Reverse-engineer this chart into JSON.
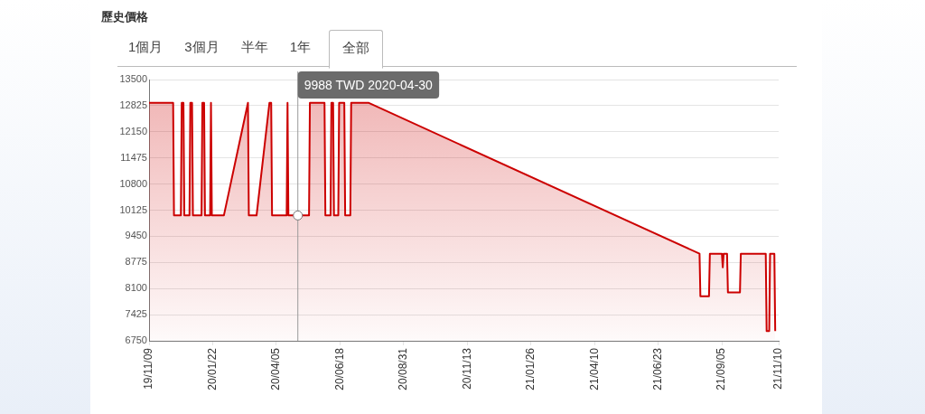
{
  "chart_data": {
    "type": "area",
    "title": "歷史價格",
    "annotations": [
      "1個月",
      "3個月",
      "半年",
      "1年",
      "全部"
    ],
    "ref_lines": [
      {
        "axis": "x",
        "value": "2020-04-30",
        "label": "9988 TWD 2020-04-30",
        "color": "#999999"
      }
    ],
    "x": [
      "2019-11-09",
      "2019-12-07",
      "2019-12-08",
      "2019-12-16",
      "2019-12-17",
      "2019-12-19",
      "2019-12-20",
      "2019-12-26",
      "2019-12-27",
      "2019-12-29",
      "2019-12-30",
      "2020-01-09",
      "2020-01-10",
      "2020-01-12",
      "2020-01-13",
      "2020-01-19",
      "2020-01-20",
      "2020-01-21",
      "2020-02-04",
      "2020-03-03",
      "2020-03-04",
      "2020-03-13",
      "2020-03-28",
      "2020-03-30",
      "2020-03-31",
      "2020-04-17",
      "2020-04-18",
      "2020-04-19",
      "2020-04-30",
      "2020-05-13",
      "2020-05-14",
      "2020-05-31",
      "2020-06-01",
      "2020-06-07",
      "2020-06-08",
      "2020-06-10",
      "2020-06-11",
      "2020-06-16",
      "2020-06-17",
      "2020-06-23",
      "2020-06-24",
      "2020-06-30",
      "2020-07-01",
      "2020-07-21",
      "2021-08-10",
      "2021-08-11",
      "2021-08-21",
      "2021-08-22",
      "2021-09-05",
      "2021-09-06",
      "2021-09-07",
      "2021-09-11",
      "2021-09-12",
      "2021-09-26",
      "2021-09-27",
      "2021-10-26",
      "2021-10-27",
      "2021-10-30",
      "2021-10-31",
      "2021-11-05",
      "2021-11-06"
    ],
    "series": [
      {
        "color": "#cc0000",
        "values": [
          12900,
          12900,
          9988,
          9988,
          12900,
          12900,
          9988,
          9988,
          12900,
          12900,
          9988,
          9988,
          12900,
          12900,
          9988,
          9988,
          12900,
          9988,
          9988,
          12900,
          9988,
          9988,
          12900,
          12900,
          9988,
          9988,
          12900,
          9988,
          9988,
          9988,
          12900,
          12900,
          9988,
          9988,
          12900,
          12900,
          9988,
          9988,
          12900,
          12900,
          9988,
          9988,
          12900,
          12900,
          9000,
          7900,
          7900,
          9000,
          9000,
          8650,
          9000,
          9000,
          8000,
          8000,
          9000,
          9000,
          7000,
          7000,
          9000,
          9000,
          7000
        ]
      }
    ],
    "xlim": [
      "2019-11-09",
      "2021-11-10"
    ],
    "xticks": [
      {
        "value": "2019-11-09",
        "label": "19/11/09"
      },
      {
        "value": "2020-01-22",
        "label": "20/01/22"
      },
      {
        "value": "2020-04-05",
        "label": "20/04/05"
      },
      {
        "value": "2020-06-18",
        "label": "20/06/18"
      },
      {
        "value": "2020-08-31",
        "label": "20/08/31"
      },
      {
        "value": "2020-11-13",
        "label": "20/11/13"
      },
      {
        "value": "2021-01-26",
        "label": "21/01/26"
      },
      {
        "value": "2021-04-10",
        "label": "21/04/10"
      },
      {
        "value": "2021-06-23",
        "label": "21/06/23"
      },
      {
        "value": "2021-09-05",
        "label": "21/09/05"
      },
      {
        "value": "2021-11-10",
        "label": "21/11/10"
      }
    ],
    "ylim": [
      6750,
      13500
    ],
    "yticks": [
      6750,
      7425,
      8100,
      8775,
      9450,
      10125,
      10800,
      11475,
      12150,
      12825,
      13500
    ],
    "grid": "y",
    "legend": false,
    "marker": "none",
    "line_style": "solid"
  }
}
